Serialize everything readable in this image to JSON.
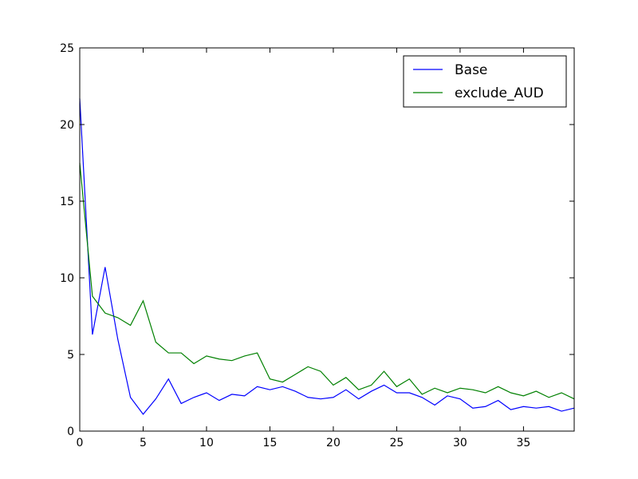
{
  "chart_data": {
    "type": "line",
    "title": "",
    "xlabel": "",
    "ylabel": "",
    "xlim": [
      0,
      39
    ],
    "ylim": [
      0,
      25
    ],
    "xticks": [
      0,
      5,
      10,
      15,
      20,
      25,
      30,
      35
    ],
    "yticks": [
      0,
      5,
      10,
      15,
      20,
      25
    ],
    "grid": false,
    "legend_position": "top-right",
    "x": [
      0,
      1,
      2,
      3,
      4,
      5,
      6,
      7,
      8,
      9,
      10,
      11,
      12,
      13,
      14,
      15,
      16,
      17,
      18,
      19,
      20,
      21,
      22,
      23,
      24,
      25,
      26,
      27,
      28,
      29,
      30,
      31,
      32,
      33,
      34,
      35,
      36,
      37,
      38,
      39
    ],
    "series": [
      {
        "name": "Base",
        "color": "#0000ff",
        "values": [
          21.7,
          6.3,
          10.7,
          6.0,
          2.2,
          1.1,
          2.1,
          3.4,
          1.8,
          2.2,
          2.5,
          2.0,
          2.4,
          2.3,
          2.9,
          2.7,
          2.9,
          2.6,
          2.2,
          2.1,
          2.2,
          2.7,
          2.1,
          2.6,
          3.0,
          2.5,
          2.5,
          2.2,
          1.7,
          2.3,
          2.1,
          1.5,
          1.6,
          2.0,
          1.4,
          1.6,
          1.5,
          1.6,
          1.3,
          1.5
        ]
      },
      {
        "name": "exclude_AUD",
        "color": "#008000",
        "values": [
          17.5,
          8.8,
          7.7,
          7.4,
          6.9,
          8.5,
          5.8,
          5.1,
          5.1,
          4.4,
          4.9,
          4.7,
          4.6,
          4.9,
          5.1,
          3.4,
          3.2,
          3.7,
          4.2,
          3.9,
          3.0,
          3.5,
          2.7,
          3.0,
          3.9,
          2.9,
          3.4,
          2.4,
          2.8,
          2.5,
          2.8,
          2.7,
          2.5,
          2.9,
          2.5,
          2.3,
          2.6,
          2.2,
          2.5,
          2.1
        ]
      }
    ]
  }
}
